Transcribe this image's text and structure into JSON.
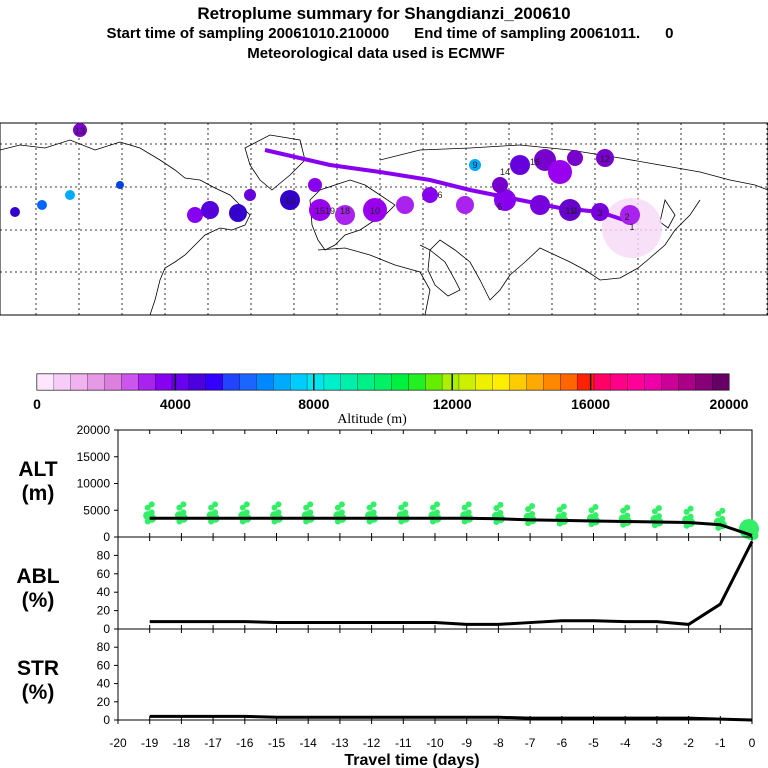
{
  "header": {
    "title": "Retroplume summary for Shangdianzi_200610",
    "sampling": "Start time of sampling 20061010.210000      End time of sampling 20061011.      0",
    "met": "Meteorological data used is ECMWF"
  },
  "map": {
    "label_texts": [
      "13",
      "9",
      "14",
      "16",
      "12",
      "13",
      "15",
      "10",
      "6",
      "11",
      "19",
      "18",
      "5",
      "4",
      "3",
      "2",
      "1"
    ]
  },
  "colorbar": {
    "ticks": [
      "0",
      "4000",
      "8000",
      "12000",
      "16000",
      "20000"
    ],
    "label": "Altitude (m)",
    "colors": [
      "#ffe6ff",
      "#f8ccf8",
      "#f0b3f0",
      "#e699e6",
      "#dd80dd",
      "#cc55ee",
      "#aa22ee",
      "#8800f0",
      "#6a00f0",
      "#4b00dd",
      "#3300ff",
      "#2244ff",
      "#1a66ff",
      "#0088ff",
      "#00aaff",
      "#00ccff",
      "#00e6ee",
      "#00eecc",
      "#00f0aa",
      "#00f088",
      "#00f066",
      "#00f040",
      "#22f022",
      "#66ee00",
      "#aaf000",
      "#ccf000",
      "#eef000",
      "#ffee00",
      "#ffcc00",
      "#ffaa00",
      "#ff8800",
      "#ff6600",
      "#ff2200",
      "#ff0066",
      "#ff0088",
      "#ff0099",
      "#ee00aa",
      "#cc0099",
      "#aa0088",
      "#880077",
      "#660066"
    ]
  },
  "chart_data": [
    {
      "type": "line",
      "name": "ALT",
      "ylabel": "ALT\n(m)",
      "ylabel_lines": [
        "ALT",
        "(m)"
      ],
      "ylim": [
        0,
        20000
      ],
      "yticks": [
        "0",
        "5000",
        "10000",
        "15000",
        "20000"
      ],
      "x": [
        -19,
        -18,
        -17,
        -16,
        -15,
        -14,
        -13,
        -12,
        -11,
        -10,
        -9,
        -8,
        -7,
        -6,
        -5,
        -4,
        -3,
        -2,
        -1,
        0
      ],
      "values": [
        3500,
        3500,
        3500,
        3500,
        3500,
        3500,
        3500,
        3500,
        3500,
        3500,
        3500,
        3400,
        3200,
        3100,
        3000,
        2900,
        2800,
        2700,
        2300,
        300
      ],
      "scatter_color": "#33ee66"
    },
    {
      "type": "line",
      "name": "ABL",
      "ylabel": "ABL\n(%)",
      "ylabel_lines": [
        "ABL",
        "(%)"
      ],
      "ylim": [
        0,
        100
      ],
      "yticks": [
        "0",
        "20",
        "40",
        "60",
        "80"
      ],
      "x": [
        -19,
        -18,
        -17,
        -16,
        -15,
        -14,
        -13,
        -12,
        -11,
        -10,
        -9,
        -8,
        -7,
        -6,
        -5,
        -4,
        -3,
        -2,
        -1,
        0
      ],
      "values": [
        8,
        8,
        8,
        8,
        7,
        7,
        7,
        7,
        7,
        7,
        5,
        5,
        7,
        9,
        9,
        8,
        8,
        5,
        27,
        95
      ]
    },
    {
      "type": "line",
      "name": "STR",
      "ylabel": "STR\n(%)",
      "ylabel_lines": [
        "STR",
        "(%)"
      ],
      "ylim": [
        0,
        100
      ],
      "yticks": [
        "0",
        "20",
        "40",
        "60",
        "80"
      ],
      "x": [
        -19,
        -18,
        -17,
        -16,
        -15,
        -14,
        -13,
        -12,
        -11,
        -10,
        -9,
        -8,
        -7,
        -6,
        -5,
        -4,
        -3,
        -2,
        -1,
        0
      ],
      "values": [
        4,
        4,
        4,
        4,
        3,
        3,
        3,
        3,
        3,
        3,
        3,
        3,
        2,
        2,
        2,
        2,
        2,
        2,
        1,
        0
      ],
      "xlabel": "Travel time (days)",
      "xticks": [
        "-20",
        "-19",
        "-18",
        "-17",
        "-16",
        "-15",
        "-14",
        "-13",
        "-12",
        "-11",
        "-10",
        "-9",
        "-8",
        "-7",
        "-6",
        "-5",
        "-4",
        "-3",
        "-2",
        "-1",
        "0"
      ]
    }
  ]
}
